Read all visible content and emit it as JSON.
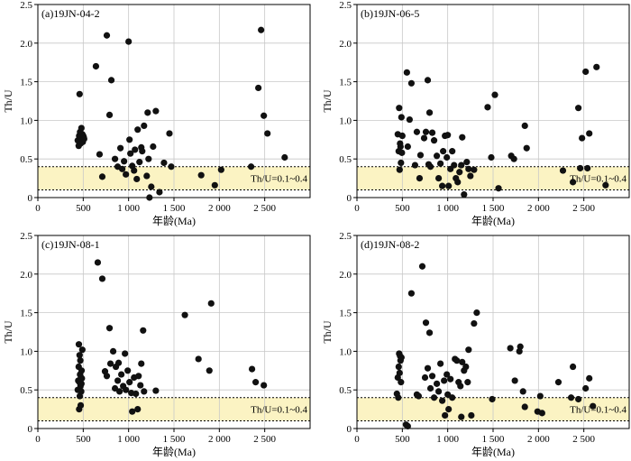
{
  "chart_data": [
    {
      "type": "scatter",
      "title": "(a)19JN-04-2",
      "xlabel": "年龄(Ma)",
      "ylabel": "Th/U",
      "xlim": [
        0,
        3000
      ],
      "ylim": [
        0,
        2.5
      ],
      "xticks": [
        0,
        500,
        1000,
        1500,
        2000,
        2500
      ],
      "xtick_labels": [
        "0",
        "500",
        "1 000",
        "1 500",
        "2 000",
        "2 500"
      ],
      "yticks": [
        0,
        0.5,
        1.0,
        1.5,
        2.0,
        2.5
      ],
      "ytick_labels": [
        "0",
        "0.5",
        "1.0",
        "1.5",
        "2.0",
        "2.5"
      ],
      "grid": true,
      "band": {
        "from": 0.1,
        "to": 0.4,
        "label": "Th/U=0.1~0.4"
      },
      "points": [
        [
          440,
          0.74
        ],
        [
          450,
          0.67
        ],
        [
          455,
          0.8
        ],
        [
          460,
          1.34
        ],
        [
          465,
          0.85
        ],
        [
          470,
          0.7
        ],
        [
          475,
          0.78
        ],
        [
          480,
          0.9
        ],
        [
          485,
          0.75
        ],
        [
          490,
          0.82
        ],
        [
          495,
          0.72
        ],
        [
          500,
          0.8
        ],
        [
          505,
          0.78
        ],
        [
          510,
          0.76
        ],
        [
          640,
          1.7
        ],
        [
          680,
          0.56
        ],
        [
          710,
          0.27
        ],
        [
          760,
          2.1
        ],
        [
          790,
          1.07
        ],
        [
          810,
          1.52
        ],
        [
          850,
          0.5
        ],
        [
          880,
          0.4
        ],
        [
          910,
          0.64
        ],
        [
          930,
          0.37
        ],
        [
          950,
          0.47
        ],
        [
          970,
          0.3
        ],
        [
          1000,
          2.02
        ],
        [
          1010,
          0.75
        ],
        [
          1020,
          0.57
        ],
        [
          1040,
          0.41
        ],
        [
          1060,
          0.35
        ],
        [
          1070,
          0.62
        ],
        [
          1090,
          0.24
        ],
        [
          1100,
          0.88
        ],
        [
          1120,
          0.46
        ],
        [
          1140,
          0.65
        ],
        [
          1150,
          0.6
        ],
        [
          1170,
          0.93
        ],
        [
          1200,
          0.28
        ],
        [
          1210,
          1.1
        ],
        [
          1220,
          0.5
        ],
        [
          1230,
          0.0
        ],
        [
          1250,
          0.14
        ],
        [
          1270,
          0.66
        ],
        [
          1300,
          1.12
        ],
        [
          1340,
          0.07
        ],
        [
          1390,
          0.45
        ],
        [
          1450,
          0.83
        ],
        [
          1470,
          0.4
        ],
        [
          1800,
          0.29
        ],
        [
          1950,
          0.16
        ],
        [
          2020,
          0.36
        ],
        [
          2350,
          0.4
        ],
        [
          2430,
          1.42
        ],
        [
          2460,
          2.17
        ],
        [
          2490,
          1.06
        ],
        [
          2530,
          0.83
        ],
        [
          2720,
          0.52
        ]
      ]
    },
    {
      "type": "scatter",
      "title": "(b)19JN-06-5",
      "xlabel": "年龄(Ma)",
      "ylabel": "Th/U",
      "xlim": [
        0,
        3000
      ],
      "ylim": [
        0,
        2.5
      ],
      "xticks": [
        0,
        500,
        1000,
        1500,
        2000,
        2500
      ],
      "xtick_labels": [
        "0",
        "500",
        "1 000",
        "1 500",
        "2 000",
        "2 500"
      ],
      "yticks": [
        0,
        0.5,
        1.0,
        1.5,
        2.0,
        2.5
      ],
      "ytick_labels": [
        "0",
        "0.5",
        "1.0",
        "1.5",
        "2.0",
        "2.5"
      ],
      "grid": true,
      "band": {
        "from": 0.1,
        "to": 0.4,
        "label": "Th/U=0.1~0.4"
      },
      "points": [
        [
          450,
          0.82
        ],
        [
          460,
          0.6
        ],
        [
          465,
          1.16
        ],
        [
          470,
          0.36
        ],
        [
          475,
          0.7
        ],
        [
          480,
          0.66
        ],
        [
          485,
          0.45
        ],
        [
          490,
          1.04
        ],
        [
          495,
          0.58
        ],
        [
          500,
          0.8
        ],
        [
          550,
          1.62
        ],
        [
          560,
          0.66
        ],
        [
          580,
          1.01
        ],
        [
          600,
          1.48
        ],
        [
          640,
          0.42
        ],
        [
          660,
          0.85
        ],
        [
          690,
          0.25
        ],
        [
          700,
          0.55
        ],
        [
          740,
          0.77
        ],
        [
          760,
          0.85
        ],
        [
          780,
          1.52
        ],
        [
          790,
          0.43
        ],
        [
          800,
          1.1
        ],
        [
          810,
          0.4
        ],
        [
          830,
          0.84
        ],
        [
          850,
          0.74
        ],
        [
          880,
          0.54
        ],
        [
          900,
          0.25
        ],
        [
          920,
          0.44
        ],
        [
          940,
          0.15
        ],
        [
          950,
          0.6
        ],
        [
          970,
          0.8
        ],
        [
          990,
          0.52
        ],
        [
          1000,
          0.81
        ],
        [
          1010,
          0.15
        ],
        [
          1030,
          0.37
        ],
        [
          1050,
          0.6
        ],
        [
          1070,
          0.42
        ],
        [
          1090,
          0.25
        ],
        [
          1110,
          0.2
        ],
        [
          1130,
          0.33
        ],
        [
          1150,
          0.42
        ],
        [
          1160,
          0.78
        ],
        [
          1180,
          0.04
        ],
        [
          1210,
          0.46
        ],
        [
          1230,
          0.37
        ],
        [
          1250,
          0.28
        ],
        [
          1290,
          0.36
        ],
        [
          1440,
          1.17
        ],
        [
          1480,
          0.52
        ],
        [
          1520,
          1.33
        ],
        [
          1560,
          0.12
        ],
        [
          1700,
          0.54
        ],
        [
          1730,
          0.5
        ],
        [
          1850,
          0.93
        ],
        [
          1870,
          0.64
        ],
        [
          2270,
          0.35
        ],
        [
          2380,
          0.2
        ],
        [
          2440,
          1.16
        ],
        [
          2460,
          0.38
        ],
        [
          2480,
          0.77
        ],
        [
          2520,
          1.63
        ],
        [
          2540,
          0.38
        ],
        [
          2560,
          0.83
        ],
        [
          2640,
          1.69
        ],
        [
          2740,
          0.16
        ]
      ]
    },
    {
      "type": "scatter",
      "title": "(c)19JN-08-1",
      "xlabel": "年龄(Ma)",
      "ylabel": "Th/U",
      "xlim": [
        0,
        3000
      ],
      "ylim": [
        0,
        2.5
      ],
      "xticks": [
        0,
        500,
        1000,
        1500,
        2000,
        2500
      ],
      "xtick_labels": [
        "0",
        "500",
        "1 000",
        "1 500",
        "2 000",
        "2 500"
      ],
      "yticks": [
        0,
        0.5,
        1.0,
        1.5,
        2.0,
        2.5
      ],
      "ytick_labels": [
        "0",
        "0.5",
        "1.0",
        "1.5",
        "2.0",
        "2.5"
      ],
      "grid": true,
      "band": {
        "from": 0.1,
        "to": 0.4,
        "label": "Th/U=0.1~0.4"
      },
      "points": [
        [
          440,
          0.5
        ],
        [
          445,
          0.62
        ],
        [
          450,
          0.8
        ],
        [
          452,
          1.09
        ],
        [
          455,
          0.25
        ],
        [
          458,
          0.6
        ],
        [
          460,
          0.95
        ],
        [
          462,
          0.42
        ],
        [
          465,
          0.7
        ],
        [
          468,
          0.88
        ],
        [
          470,
          0.55
        ],
        [
          472,
          0.3
        ],
        [
          475,
          0.66
        ],
        [
          478,
          0.48
        ],
        [
          480,
          0.58
        ],
        [
          482,
          0.75
        ],
        [
          485,
          0.65
        ],
        [
          490,
          1.02
        ],
        [
          660,
          2.15
        ],
        [
          710,
          1.94
        ],
        [
          740,
          0.74
        ],
        [
          760,
          0.68
        ],
        [
          790,
          1.3
        ],
        [
          800,
          0.84
        ],
        [
          830,
          1.0
        ],
        [
          850,
          0.52
        ],
        [
          860,
          0.8
        ],
        [
          880,
          0.62
        ],
        [
          890,
          0.85
        ],
        [
          900,
          0.48
        ],
        [
          920,
          0.7
        ],
        [
          940,
          0.55
        ],
        [
          960,
          0.97
        ],
        [
          970,
          0.5
        ],
        [
          990,
          0.75
        ],
        [
          1010,
          0.6
        ],
        [
          1030,
          0.46
        ],
        [
          1040,
          0.22
        ],
        [
          1060,
          0.66
        ],
        [
          1080,
          0.45
        ],
        [
          1100,
          0.25
        ],
        [
          1110,
          0.68
        ],
        [
          1130,
          0.56
        ],
        [
          1140,
          0.84
        ],
        [
          1160,
          1.27
        ],
        [
          1170,
          0.48
        ],
        [
          1300,
          0.49
        ],
        [
          1620,
          1.47
        ],
        [
          1770,
          0.9
        ],
        [
          1890,
          0.75
        ],
        [
          1910,
          1.62
        ],
        [
          2360,
          0.77
        ],
        [
          2400,
          0.6
        ],
        [
          2490,
          0.56
        ]
      ]
    },
    {
      "type": "scatter",
      "title": "(d)19JN-08-2",
      "xlabel": "年龄(Ma)",
      "ylabel": "Th/U",
      "xlim": [
        0,
        3000
      ],
      "ylim": [
        0,
        2.5
      ],
      "xticks": [
        0,
        500,
        1000,
        1500,
        2000,
        2500
      ],
      "xtick_labels": [
        "0",
        "500",
        "1 000",
        "1 500",
        "2 000",
        "2 500"
      ],
      "yticks": [
        0,
        0.5,
        1.0,
        1.5,
        2.0,
        2.5
      ],
      "ytick_labels": [
        "0",
        "0.5",
        "1.0",
        "1.5",
        "2.0",
        "2.5"
      ],
      "grid": true,
      "band": {
        "from": 0.1,
        "to": 0.4,
        "label": "Th/U=0.1~0.4"
      },
      "points": [
        [
          440,
          0.45
        ],
        [
          450,
          0.66
        ],
        [
          455,
          0.4
        ],
        [
          460,
          0.8
        ],
        [
          465,
          0.97
        ],
        [
          470,
          0.72
        ],
        [
          475,
          0.94
        ],
        [
          480,
          0.88
        ],
        [
          485,
          0.6
        ],
        [
          490,
          0.92
        ],
        [
          540,
          0.05
        ],
        [
          560,
          0.03
        ],
        [
          600,
          1.75
        ],
        [
          660,
          0.44
        ],
        [
          680,
          0.42
        ],
        [
          720,
          2.1
        ],
        [
          750,
          0.66
        ],
        [
          760,
          1.37
        ],
        [
          780,
          0.78
        ],
        [
          800,
          1.24
        ],
        [
          810,
          0.52
        ],
        [
          830,
          0.68
        ],
        [
          850,
          0.4
        ],
        [
          880,
          0.58
        ],
        [
          900,
          0.48
        ],
        [
          920,
          0.84
        ],
        [
          940,
          0.36
        ],
        [
          960,
          0.62
        ],
        [
          970,
          0.17
        ],
        [
          990,
          0.7
        ],
        [
          1000,
          0.44
        ],
        [
          1010,
          0.25
        ],
        [
          1030,
          0.64
        ],
        [
          1050,
          0.4
        ],
        [
          1080,
          0.9
        ],
        [
          1100,
          0.88
        ],
        [
          1120,
          0.6
        ],
        [
          1140,
          0.55
        ],
        [
          1150,
          0.15
        ],
        [
          1160,
          0.86
        ],
        [
          1180,
          0.75
        ],
        [
          1200,
          0.8
        ],
        [
          1220,
          0.6
        ],
        [
          1230,
          1.02
        ],
        [
          1260,
          0.17
        ],
        [
          1290,
          1.36
        ],
        [
          1320,
          1.5
        ],
        [
          1490,
          0.38
        ],
        [
          1690,
          1.04
        ],
        [
          1740,
          0.62
        ],
        [
          1790,
          1.0
        ],
        [
          1800,
          1.06
        ],
        [
          1830,
          0.48
        ],
        [
          1850,
          0.28
        ],
        [
          1990,
          0.22
        ],
        [
          2020,
          0.42
        ],
        [
          2040,
          0.2
        ],
        [
          2220,
          0.6
        ],
        [
          2360,
          0.4
        ],
        [
          2380,
          0.8
        ],
        [
          2440,
          0.38
        ],
        [
          2520,
          0.52
        ],
        [
          2560,
          0.65
        ],
        [
          2600,
          0.29
        ]
      ]
    }
  ]
}
